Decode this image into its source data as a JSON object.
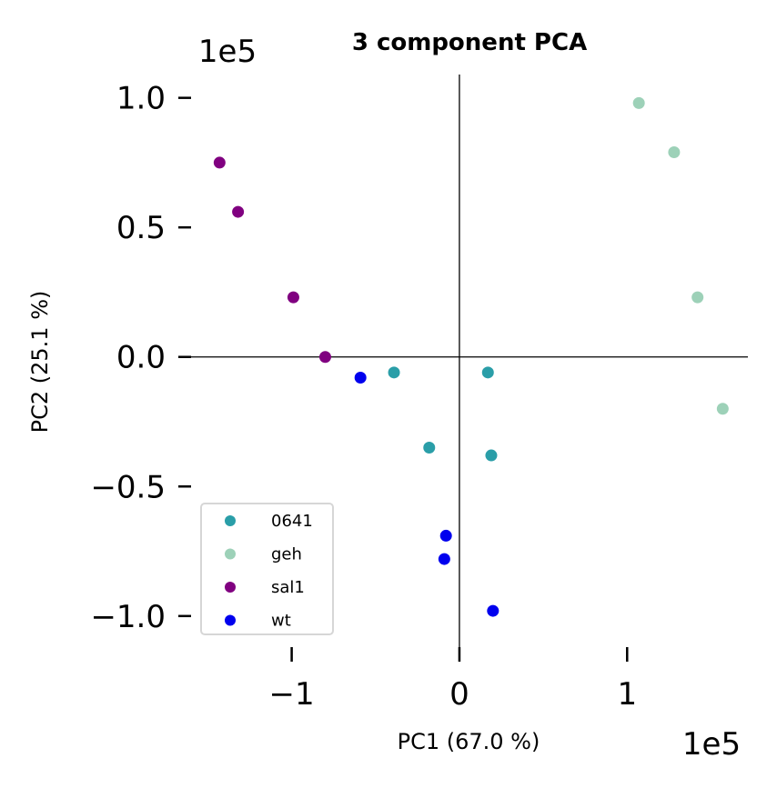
{
  "chart_data": {
    "type": "scatter",
    "title": "3 component PCA",
    "xlabel": "PC1 (67.0 %)",
    "ylabel": "PC2 (25.1 %)",
    "x_offset_label": "1e5",
    "y_offset_label": "1e5",
    "xlim": [
      -1.6,
      1.72
    ],
    "ylim": [
      -1.12,
      1.09
    ],
    "x_ticks": [
      -1,
      0,
      1
    ],
    "x_tick_labels": [
      "−1",
      "0",
      "1"
    ],
    "y_ticks": [
      1.0,
      0.5,
      0.0,
      -0.5,
      -1.0
    ],
    "y_tick_labels": [
      "1.0",
      "0.5",
      "0.0",
      "−0.5",
      "−1.0"
    ],
    "grid": false,
    "legend_position": "lower-left",
    "series": [
      {
        "name": "0641",
        "color": "#2a9ea8",
        "points": [
          [
            -0.39,
            -0.06
          ],
          [
            0.17,
            -0.06
          ],
          [
            -0.18,
            -0.35
          ],
          [
            0.19,
            -0.38
          ]
        ]
      },
      {
        "name": "geh",
        "color": "#9dd1b8",
        "points": [
          [
            1.07,
            0.98
          ],
          [
            1.28,
            0.79
          ],
          [
            1.42,
            0.23
          ],
          [
            1.57,
            -0.2
          ]
        ]
      },
      {
        "name": "sal1",
        "color": "#800080",
        "points": [
          [
            -1.43,
            0.75
          ],
          [
            -1.32,
            0.56
          ],
          [
            -0.99,
            0.23
          ],
          [
            -0.8,
            0.0
          ]
        ]
      },
      {
        "name": "wt",
        "color": "#0000ee",
        "points": [
          [
            -0.59,
            -0.08
          ],
          [
            -0.08,
            -0.69
          ],
          [
            -0.09,
            -0.78
          ],
          [
            0.2,
            -0.98
          ]
        ]
      }
    ]
  }
}
